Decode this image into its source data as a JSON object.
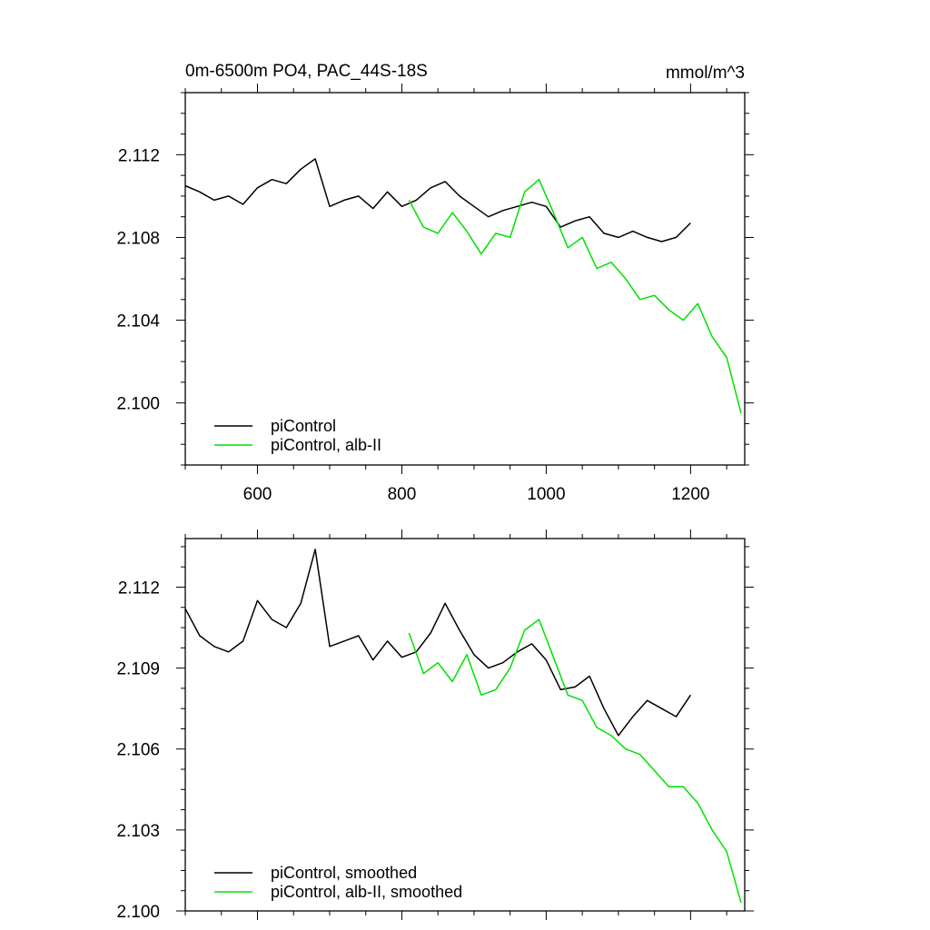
{
  "chart_data": [
    {
      "type": "line",
      "title": "0m-6500m PO4, PAC_44S-18S",
      "units": "mmol/m^3",
      "xlabel": "",
      "ylabel": "",
      "xlim": [
        500,
        1275
      ],
      "ylim": [
        2.097,
        2.115
      ],
      "xticks": [
        600,
        800,
        1000,
        1200
      ],
      "xtick_labels": [
        "600",
        "800",
        "1000",
        "1200"
      ],
      "yticks": [
        2.1,
        2.104,
        2.108,
        2.112
      ],
      "ytick_labels": [
        "2.100",
        "2.104",
        "2.108",
        "2.112"
      ],
      "grid": false,
      "legend_position": "bottom-left",
      "series": [
        {
          "name": "piControl",
          "color": "#000000",
          "x": [
            500,
            520,
            540,
            560,
            580,
            600,
            620,
            640,
            660,
            680,
            700,
            720,
            740,
            760,
            780,
            800,
            820,
            840,
            860,
            880,
            900,
            920,
            940,
            960,
            980,
            1000,
            1020,
            1040,
            1060,
            1080,
            1100,
            1120,
            1140,
            1160,
            1180,
            1200
          ],
          "values": [
            2.1105,
            2.1102,
            2.1098,
            2.11,
            2.1096,
            2.1104,
            2.1108,
            2.1106,
            2.1113,
            2.1118,
            2.1095,
            2.1098,
            2.11,
            2.1094,
            2.1102,
            2.1095,
            2.1098,
            2.1104,
            2.1107,
            2.11,
            2.1095,
            2.109,
            2.1093,
            2.1095,
            2.1097,
            2.1095,
            2.1085,
            2.1088,
            2.109,
            2.1082,
            2.108,
            2.1083,
            2.108,
            2.1078,
            2.108,
            2.1087
          ]
        },
        {
          "name": "piControl, alb-II",
          "color": "#00e000",
          "x": [
            810,
            830,
            850,
            870,
            890,
            910,
            930,
            950,
            970,
            990,
            1010,
            1030,
            1050,
            1070,
            1090,
            1110,
            1130,
            1150,
            1170,
            1190,
            1210,
            1230,
            1250,
            1270
          ],
          "values": [
            2.1098,
            2.1085,
            2.1082,
            2.1092,
            2.1083,
            2.1072,
            2.1082,
            2.108,
            2.1102,
            2.1108,
            2.1092,
            2.1075,
            2.108,
            2.1065,
            2.1068,
            2.106,
            2.105,
            2.1052,
            2.1045,
            2.104,
            2.1048,
            2.1032,
            2.1022,
            2.0995
          ]
        }
      ]
    },
    {
      "type": "line",
      "title": "",
      "xlabel": "",
      "ylabel": "",
      "xlim": [
        500,
        1275
      ],
      "ylim": [
        2.1,
        2.1138
      ],
      "xticks": [
        600,
        800,
        1000,
        1200
      ],
      "yticks": [
        2.1,
        2.103,
        2.106,
        2.109,
        2.112
      ],
      "ytick_labels": [
        "2.100",
        "2.103",
        "2.106",
        "2.109",
        "2.112"
      ],
      "grid": false,
      "legend_position": "bottom-left",
      "series": [
        {
          "name": "piControl, smoothed",
          "color": "#000000",
          "x": [
            500,
            520,
            540,
            560,
            580,
            600,
            620,
            640,
            660,
            680,
            700,
            720,
            740,
            760,
            780,
            800,
            820,
            840,
            860,
            880,
            900,
            920,
            940,
            960,
            980,
            1000,
            1020,
            1040,
            1060,
            1080,
            1100,
            1120,
            1140,
            1160,
            1180,
            1200
          ],
          "values": [
            2.1112,
            2.1102,
            2.1098,
            2.1096,
            2.11,
            2.1115,
            2.1108,
            2.1105,
            2.1114,
            2.1134,
            2.1098,
            2.11,
            2.1102,
            2.1093,
            2.11,
            2.1094,
            2.1096,
            2.1103,
            2.1114,
            2.1104,
            2.1095,
            2.109,
            2.1092,
            2.1096,
            2.1099,
            2.1093,
            2.1082,
            2.1083,
            2.1087,
            2.1075,
            2.1065,
            2.1072,
            2.1078,
            2.1075,
            2.1072,
            2.108
          ]
        },
        {
          "name": "piControl, alb-II, smoothed",
          "color": "#00e000",
          "x": [
            810,
            830,
            850,
            870,
            890,
            910,
            930,
            950,
            970,
            990,
            1010,
            1030,
            1050,
            1070,
            1090,
            1110,
            1130,
            1150,
            1170,
            1190,
            1210,
            1230,
            1250,
            1270
          ],
          "values": [
            2.1103,
            2.1088,
            2.1092,
            2.1085,
            2.1095,
            2.108,
            2.1082,
            2.109,
            2.1104,
            2.1108,
            2.1094,
            2.108,
            2.1078,
            2.1068,
            2.1065,
            2.106,
            2.1058,
            2.1052,
            2.1046,
            2.1046,
            2.104,
            2.103,
            2.1022,
            2.1003
          ]
        }
      ]
    }
  ]
}
